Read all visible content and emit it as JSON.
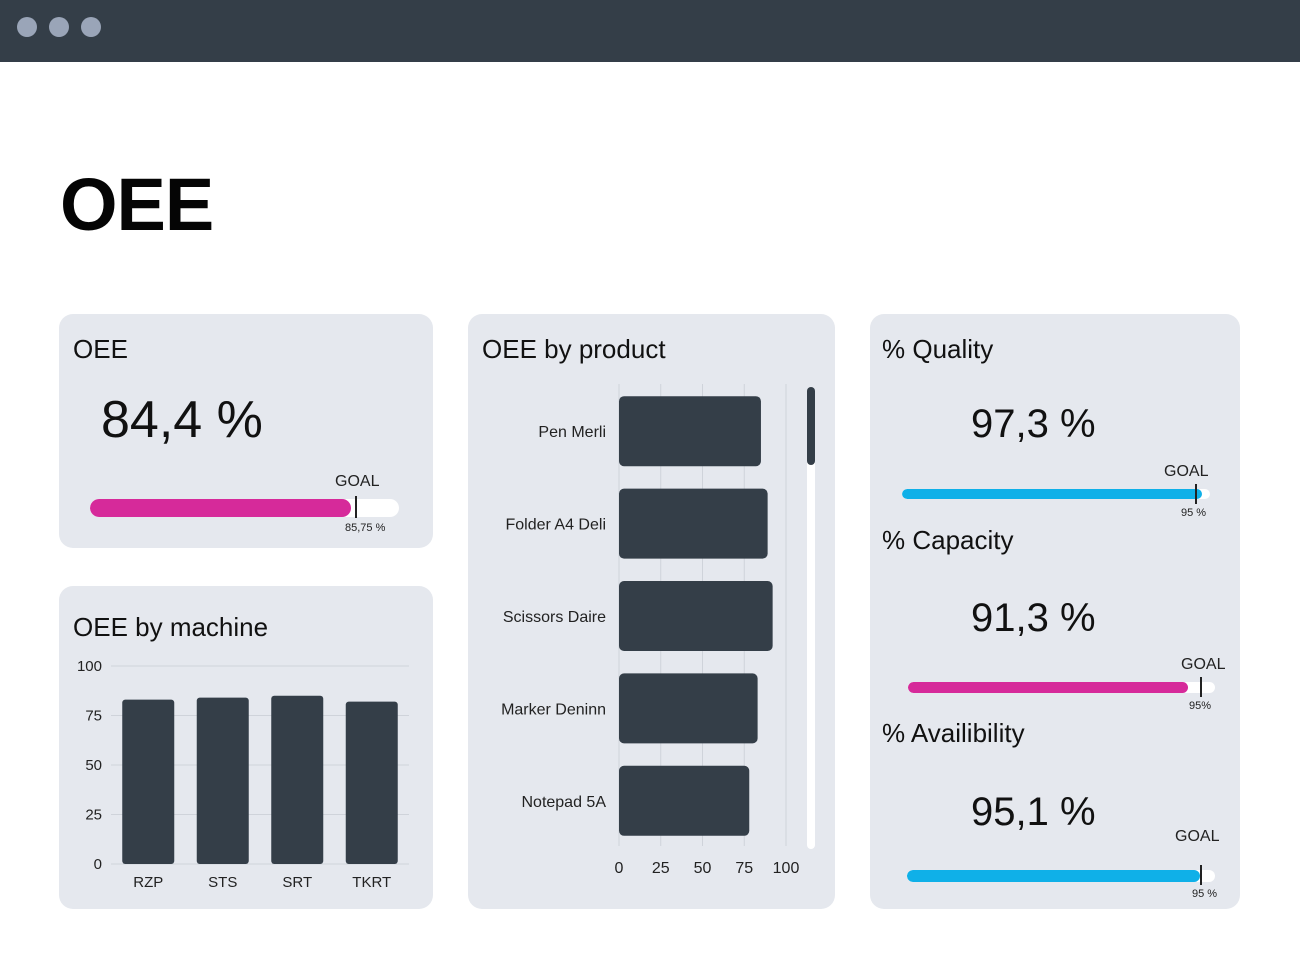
{
  "page": {
    "title": "OEE"
  },
  "colors": {
    "titlebar": "#343e48",
    "bar": "#343e48",
    "magenta": "#d62a9a",
    "cyan": "#0fb0e8",
    "card": "#e5e8ee"
  },
  "oee_card": {
    "title": "OEE",
    "value": "84,4 %",
    "goal_label": "GOAL",
    "goal_value": "85,75 %",
    "progress": 84.4,
    "goal": 85.75
  },
  "machine_card": {
    "title": "OEE by machine",
    "chart_data": {
      "type": "bar",
      "categories": [
        "RZP",
        "STS",
        "SRT",
        "TKRT"
      ],
      "values": [
        83,
        84,
        85,
        82
      ],
      "yticks": [
        "0",
        "25",
        "50",
        "75",
        "100"
      ],
      "ylim": [
        0,
        100
      ],
      "color": "#343e48"
    }
  },
  "product_card": {
    "title": "OEE by product",
    "chart_data": {
      "type": "bar",
      "orientation": "horizontal",
      "categories": [
        "Pen Merli",
        "Folder A4 Deli",
        "Scissors Daire",
        "Marker Deninn",
        "Notepad 5A"
      ],
      "values": [
        85,
        89,
        92,
        83,
        78
      ],
      "xticks": [
        "0",
        "25",
        "50",
        "75",
        "100"
      ],
      "xlim": [
        0,
        100
      ],
      "color": "#343e48"
    }
  },
  "metrics_card": {
    "quality": {
      "title": "% Quality",
      "value": "97,3 %",
      "goal_label": "GOAL",
      "goal_value": "95 %",
      "progress": 97.3,
      "goal": 95,
      "color": "#0fb0e8"
    },
    "capacity": {
      "title": "% Capacity",
      "value": "91,3 %",
      "goal_label": "GOAL",
      "goal_value": "95%",
      "progress": 91.3,
      "goal": 95,
      "color": "#d62a9a"
    },
    "availability": {
      "title": "% Availibility",
      "value": "95,1 %",
      "goal_label": "GOAL",
      "goal_value": "95 %",
      "progress": 95.1,
      "goal": 95,
      "color": "#0fb0e8"
    }
  }
}
